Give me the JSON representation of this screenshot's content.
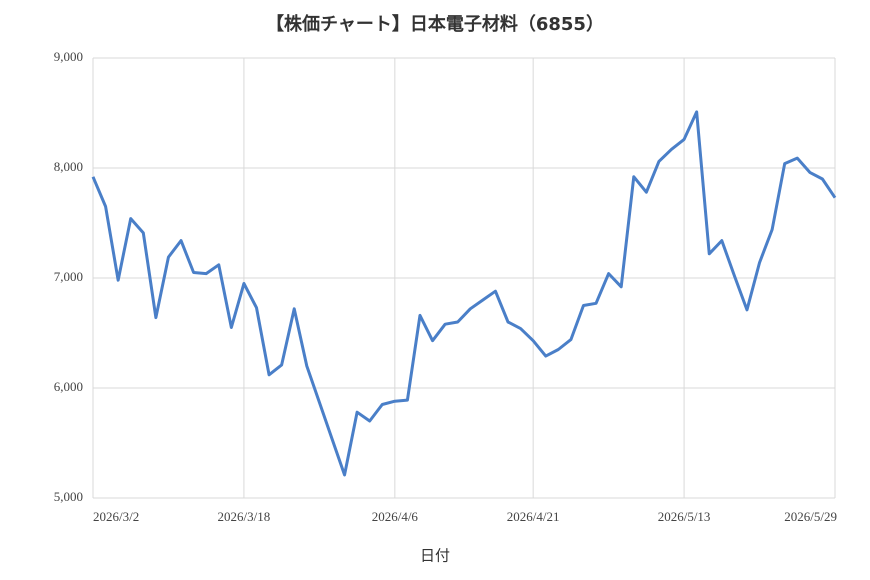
{
  "chart_data": {
    "type": "line",
    "title": "【株価チャート】日本電子材料（6855）",
    "x_label": "日付",
    "categories": [
      "2026/3/2",
      null,
      null,
      null,
      null,
      null,
      null,
      null,
      null,
      null,
      null,
      null,
      "2026/3/18",
      null,
      null,
      null,
      null,
      null,
      null,
      null,
      null,
      null,
      null,
      null,
      "2026/4/6",
      null,
      null,
      null,
      null,
      null,
      null,
      null,
      null,
      null,
      null,
      "2026/4/21",
      null,
      null,
      null,
      null,
      null,
      null,
      null,
      null,
      null,
      null,
      null,
      "2026/5/13",
      null,
      null,
      null,
      null,
      null,
      null,
      null,
      null,
      null,
      null,
      null,
      "2026/5/29"
    ],
    "series": [
      {
        "name": "株価",
        "color": "#4a7fc8",
        "values": [
          7920,
          7650,
          6980,
          7540,
          7410,
          6640,
          7190,
          7340,
          7050,
          7040,
          7120,
          6550,
          6950,
          6730,
          6120,
          6210,
          6720,
          6200,
          5870,
          5540,
          5210,
          5780,
          5700,
          5850,
          5880,
          5890,
          6660,
          6430,
          6580,
          6600,
          6720,
          6800,
          6880,
          6600,
          6540,
          6430,
          6290,
          6350,
          6440,
          6750,
          6770,
          7040,
          6920,
          7920,
          7780,
          8060,
          8170,
          8260,
          8510,
          7220,
          7340,
          7020,
          6710,
          7140,
          7440,
          8040,
          8090,
          7960,
          7900,
          7730
        ]
      }
    ],
    "ylim": [
      5000,
      9000
    ],
    "yticks": [
      {
        "value": 5000,
        "label": "5,000"
      },
      {
        "value": 6000,
        "label": "6,000"
      },
      {
        "value": 7000,
        "label": "7,000"
      },
      {
        "value": 8000,
        "label": "8,000"
      },
      {
        "value": 9000,
        "label": "9,000"
      }
    ],
    "grid": true
  }
}
